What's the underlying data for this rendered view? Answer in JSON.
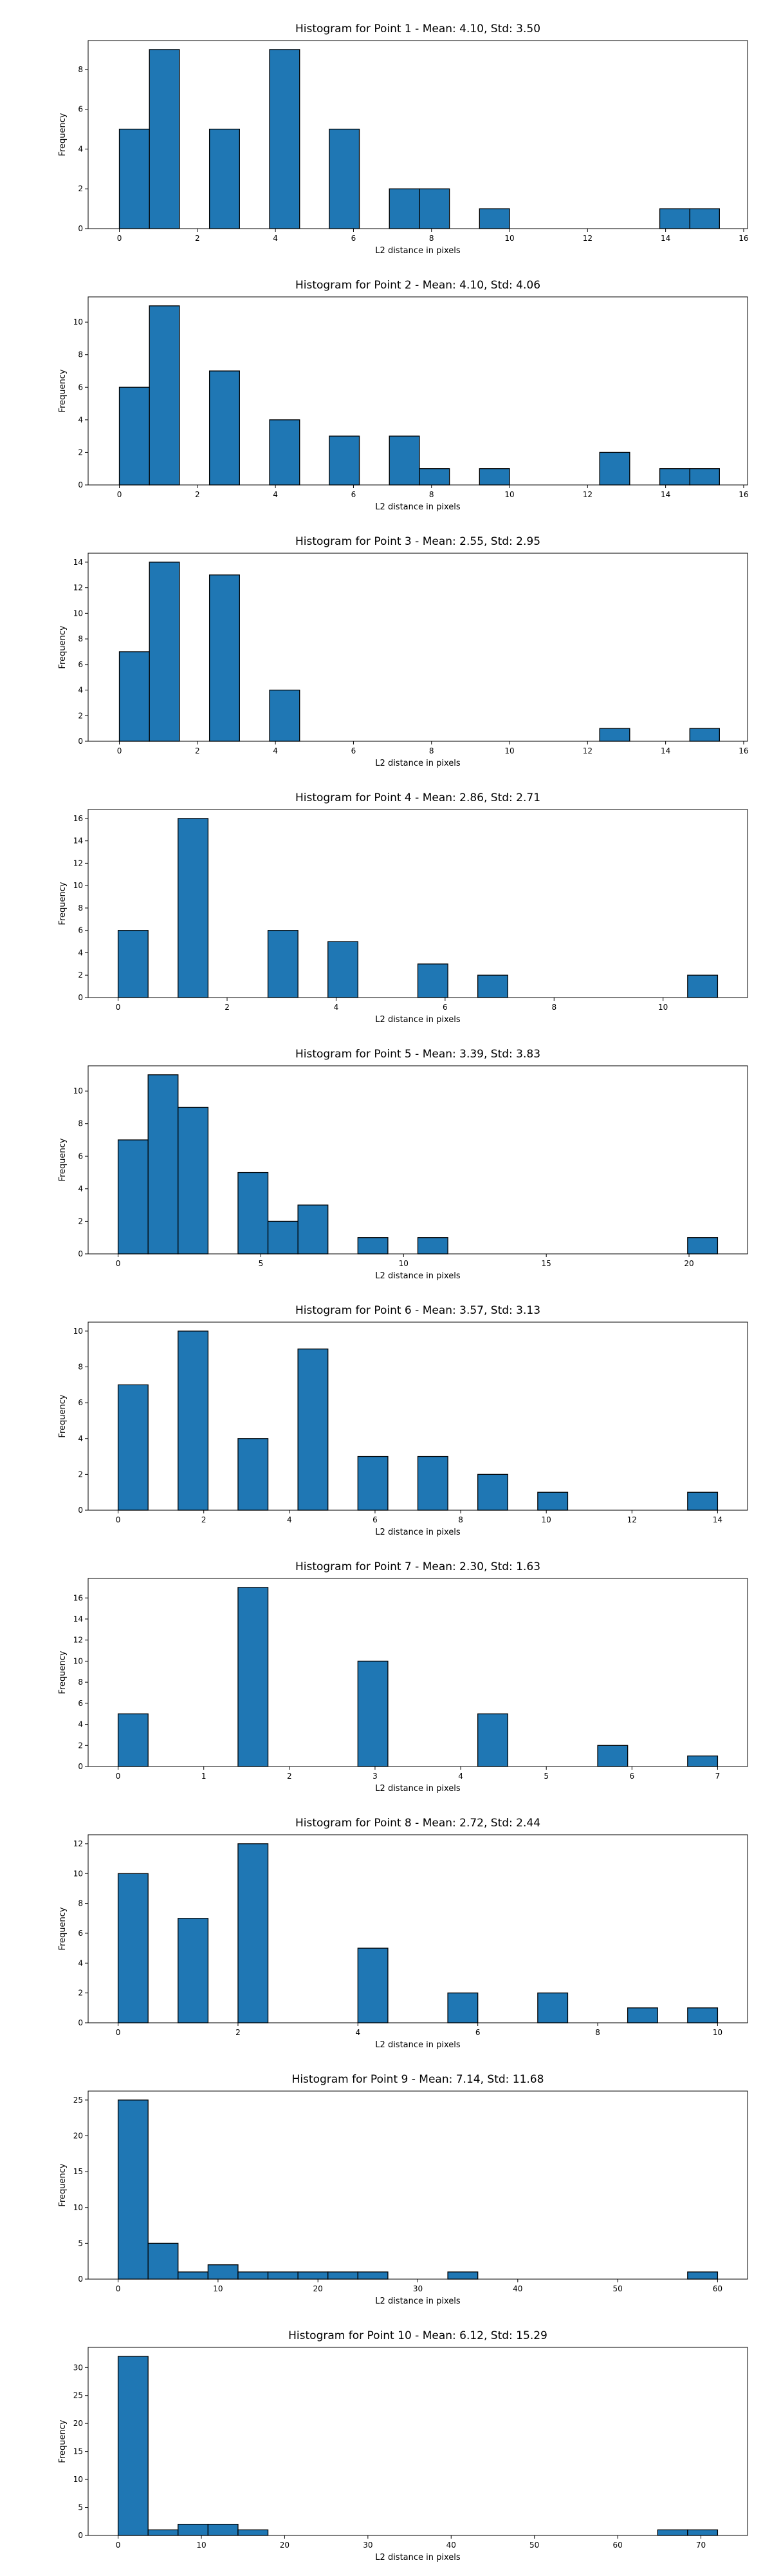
{
  "bar_color": "#1f77b4",
  "edge_color": "#000000",
  "chart_data": [
    {
      "type": "bar",
      "title": "Histogram for Point 1 - Mean: 4.10, Std: 3.50",
      "xlabel": "L2 distance in pixels",
      "ylabel": "Frequency",
      "xlim": [
        -0.8,
        16.1
      ],
      "ylim": [
        0,
        9.45
      ],
      "xticks": [
        0,
        2,
        4,
        6,
        8,
        10,
        12,
        14,
        16
      ],
      "yticks": [
        0,
        2,
        4,
        6,
        8
      ],
      "bins": [
        {
          "x0": 0.0,
          "x1": 0.77,
          "count": 5
        },
        {
          "x0": 0.77,
          "x1": 1.54,
          "count": 9
        },
        {
          "x0": 2.31,
          "x1": 3.08,
          "count": 5
        },
        {
          "x0": 3.85,
          "x1": 4.62,
          "count": 9
        },
        {
          "x0": 5.38,
          "x1": 6.15,
          "count": 5
        },
        {
          "x0": 6.92,
          "x1": 7.69,
          "count": 2
        },
        {
          "x0": 7.69,
          "x1": 8.46,
          "count": 2
        },
        {
          "x0": 9.23,
          "x1": 10.0,
          "count": 1
        },
        {
          "x0": 13.85,
          "x1": 14.62,
          "count": 1
        },
        {
          "x0": 14.62,
          "x1": 15.38,
          "count": 1
        }
      ]
    },
    {
      "type": "bar",
      "title": "Histogram for Point 2 - Mean: 4.10, Std: 4.06",
      "xlabel": "L2 distance in pixels",
      "ylabel": "Frequency",
      "xlim": [
        -0.8,
        16.1
      ],
      "ylim": [
        0,
        11.55
      ],
      "xticks": [
        0,
        2,
        4,
        6,
        8,
        10,
        12,
        14,
        16
      ],
      "yticks": [
        0,
        2,
        4,
        6,
        8,
        10
      ],
      "bins": [
        {
          "x0": 0.0,
          "x1": 0.77,
          "count": 6
        },
        {
          "x0": 0.77,
          "x1": 1.54,
          "count": 11
        },
        {
          "x0": 2.31,
          "x1": 3.08,
          "count": 7
        },
        {
          "x0": 3.85,
          "x1": 4.62,
          "count": 4
        },
        {
          "x0": 5.38,
          "x1": 6.15,
          "count": 3
        },
        {
          "x0": 6.92,
          "x1": 7.69,
          "count": 3
        },
        {
          "x0": 7.69,
          "x1": 8.46,
          "count": 1
        },
        {
          "x0": 9.23,
          "x1": 10.0,
          "count": 1
        },
        {
          "x0": 12.31,
          "x1": 13.08,
          "count": 2
        },
        {
          "x0": 13.85,
          "x1": 14.62,
          "count": 1
        },
        {
          "x0": 14.62,
          "x1": 15.38,
          "count": 1
        }
      ]
    },
    {
      "type": "bar",
      "title": "Histogram for Point 3 - Mean: 2.55, Std: 2.95",
      "xlabel": "L2 distance in pixels",
      "ylabel": "Frequency",
      "xlim": [
        -0.8,
        16.1
      ],
      "ylim": [
        0,
        14.7
      ],
      "xticks": [
        0,
        2,
        4,
        6,
        8,
        10,
        12,
        14,
        16
      ],
      "yticks": [
        0,
        2,
        4,
        6,
        8,
        10,
        12,
        14
      ],
      "bins": [
        {
          "x0": 0.0,
          "x1": 0.77,
          "count": 7
        },
        {
          "x0": 0.77,
          "x1": 1.54,
          "count": 14
        },
        {
          "x0": 2.31,
          "x1": 3.08,
          "count": 13
        },
        {
          "x0": 3.85,
          "x1": 4.62,
          "count": 4
        },
        {
          "x0": 12.31,
          "x1": 13.08,
          "count": 1
        },
        {
          "x0": 14.62,
          "x1": 15.38,
          "count": 1
        }
      ]
    },
    {
      "type": "bar",
      "title": "Histogram for Point 4 - Mean: 2.86, Std: 2.71",
      "xlabel": "L2 distance in pixels",
      "ylabel": "Frequency",
      "xlim": [
        -0.55,
        11.55
      ],
      "ylim": [
        0,
        16.8
      ],
      "xticks": [
        0,
        2,
        4,
        6,
        8,
        10
      ],
      "yticks": [
        0,
        2,
        4,
        6,
        8,
        10,
        12,
        14,
        16
      ],
      "bins": [
        {
          "x0": 0.0,
          "x1": 0.55,
          "count": 6
        },
        {
          "x0": 1.1,
          "x1": 1.65,
          "count": 16
        },
        {
          "x0": 2.75,
          "x1": 3.3,
          "count": 6
        },
        {
          "x0": 3.85,
          "x1": 4.4,
          "count": 5
        },
        {
          "x0": 5.5,
          "x1": 6.05,
          "count": 3
        },
        {
          "x0": 6.6,
          "x1": 7.15,
          "count": 2
        },
        {
          "x0": 10.45,
          "x1": 11.0,
          "count": 2
        }
      ]
    },
    {
      "type": "bar",
      "title": "Histogram for Point 5 - Mean: 3.39, Std: 3.83",
      "xlabel": "L2 distance in pixels",
      "ylabel": "Frequency",
      "xlim": [
        -1.05,
        22.05
      ],
      "ylim": [
        0,
        11.55
      ],
      "xticks": [
        0,
        5,
        10,
        15,
        20
      ],
      "yticks": [
        0,
        2,
        4,
        6,
        8,
        10
      ],
      "bins": [
        {
          "x0": 0.0,
          "x1": 1.05,
          "count": 7
        },
        {
          "x0": 1.05,
          "x1": 2.1,
          "count": 11
        },
        {
          "x0": 2.1,
          "x1": 3.15,
          "count": 9
        },
        {
          "x0": 4.2,
          "x1": 5.25,
          "count": 5
        },
        {
          "x0": 5.25,
          "x1": 6.3,
          "count": 2
        },
        {
          "x0": 6.3,
          "x1": 7.35,
          "count": 3
        },
        {
          "x0": 8.4,
          "x1": 9.45,
          "count": 1
        },
        {
          "x0": 10.5,
          "x1": 11.55,
          "count": 1
        },
        {
          "x0": 19.95,
          "x1": 21.0,
          "count": 1
        }
      ]
    },
    {
      "type": "bar",
      "title": "Histogram for Point 6 - Mean: 3.57, Std: 3.13",
      "xlabel": "L2 distance in pixels",
      "ylabel": "Frequency",
      "xlim": [
        -0.7,
        14.7
      ],
      "ylim": [
        0,
        10.5
      ],
      "xticks": [
        0,
        2,
        4,
        6,
        8,
        10,
        12,
        14
      ],
      "yticks": [
        0,
        2,
        4,
        6,
        8,
        10
      ],
      "bins": [
        {
          "x0": 0.0,
          "x1": 0.7,
          "count": 7
        },
        {
          "x0": 1.4,
          "x1": 2.1,
          "count": 10
        },
        {
          "x0": 2.8,
          "x1": 3.5,
          "count": 4
        },
        {
          "x0": 4.2,
          "x1": 4.9,
          "count": 9
        },
        {
          "x0": 5.6,
          "x1": 6.3,
          "count": 3
        },
        {
          "x0": 7.0,
          "x1": 7.7,
          "count": 3
        },
        {
          "x0": 8.4,
          "x1": 9.1,
          "count": 2
        },
        {
          "x0": 9.8,
          "x1": 10.5,
          "count": 1
        },
        {
          "x0": 13.3,
          "x1": 14.0,
          "count": 1
        }
      ]
    },
    {
      "type": "bar",
      "title": "Histogram for Point 7 - Mean: 2.30, Std: 1.63",
      "xlabel": "L2 distance in pixels",
      "ylabel": "Frequency",
      "xlim": [
        -0.35,
        7.35
      ],
      "ylim": [
        0,
        17.85
      ],
      "xticks": [
        0,
        1,
        2,
        3,
        4,
        5,
        6,
        7
      ],
      "yticks": [
        0,
        2,
        4,
        6,
        8,
        10,
        12,
        14,
        16
      ],
      "bins": [
        {
          "x0": 0.0,
          "x1": 0.35,
          "count": 5
        },
        {
          "x0": 1.4,
          "x1": 1.75,
          "count": 17
        },
        {
          "x0": 2.8,
          "x1": 3.15,
          "count": 10
        },
        {
          "x0": 4.2,
          "x1": 4.55,
          "count": 5
        },
        {
          "x0": 5.6,
          "x1": 5.95,
          "count": 2
        },
        {
          "x0": 6.65,
          "x1": 7.0,
          "count": 1
        }
      ]
    },
    {
      "type": "bar",
      "title": "Histogram for Point 8 - Mean: 2.72, Std: 2.44",
      "xlabel": "L2 distance in pixels",
      "ylabel": "Frequency",
      "xlim": [
        -0.5,
        10.5
      ],
      "ylim": [
        0,
        12.6
      ],
      "xticks": [
        0,
        2,
        4,
        6,
        8,
        10
      ],
      "yticks": [
        0,
        2,
        4,
        6,
        8,
        10,
        12
      ],
      "bins": [
        {
          "x0": 0.0,
          "x1": 0.5,
          "count": 10
        },
        {
          "x0": 1.0,
          "x1": 1.5,
          "count": 7
        },
        {
          "x0": 2.0,
          "x1": 2.5,
          "count": 12
        },
        {
          "x0": 4.0,
          "x1": 4.5,
          "count": 5
        },
        {
          "x0": 5.5,
          "x1": 6.0,
          "count": 2
        },
        {
          "x0": 7.0,
          "x1": 7.5,
          "count": 2
        },
        {
          "x0": 8.5,
          "x1": 9.0,
          "count": 1
        },
        {
          "x0": 9.5,
          "x1": 10.0,
          "count": 1
        }
      ]
    },
    {
      "type": "bar",
      "title": "Histogram for Point 9 - Mean: 7.14, Std: 11.68",
      "xlabel": "L2 distance in pixels",
      "ylabel": "Frequency",
      "xlim": [
        -3.0,
        63.0
      ],
      "ylim": [
        0,
        26.25
      ],
      "xticks": [
        0,
        10,
        20,
        30,
        40,
        50,
        60
      ],
      "yticks": [
        0,
        5,
        10,
        15,
        20,
        25
      ],
      "bins": [
        {
          "x0": 0.0,
          "x1": 3.0,
          "count": 25
        },
        {
          "x0": 3.0,
          "x1": 6.0,
          "count": 5
        },
        {
          "x0": 6.0,
          "x1": 9.0,
          "count": 1
        },
        {
          "x0": 9.0,
          "x1": 12.0,
          "count": 2
        },
        {
          "x0": 12.0,
          "x1": 15.0,
          "count": 1
        },
        {
          "x0": 15.0,
          "x1": 18.0,
          "count": 1
        },
        {
          "x0": 18.0,
          "x1": 21.0,
          "count": 1
        },
        {
          "x0": 21.0,
          "x1": 24.0,
          "count": 1
        },
        {
          "x0": 24.0,
          "x1": 27.0,
          "count": 1
        },
        {
          "x0": 33.0,
          "x1": 36.0,
          "count": 1
        },
        {
          "x0": 57.0,
          "x1": 60.0,
          "count": 1
        }
      ]
    },
    {
      "type": "bar",
      "title": "Histogram for Point 10 - Mean: 6.12, Std: 15.29",
      "xlabel": "L2 distance in pixels",
      "ylabel": "Frequency",
      "xlim": [
        -3.6,
        75.6
      ],
      "ylim": [
        0,
        33.6
      ],
      "xticks": [
        0,
        10,
        20,
        30,
        40,
        50,
        60,
        70
      ],
      "yticks": [
        0,
        5,
        10,
        15,
        20,
        25,
        30
      ],
      "bins": [
        {
          "x0": 0.0,
          "x1": 3.6,
          "count": 32
        },
        {
          "x0": 3.6,
          "x1": 7.2,
          "count": 1
        },
        {
          "x0": 7.2,
          "x1": 10.8,
          "count": 2
        },
        {
          "x0": 10.8,
          "x1": 14.4,
          "count": 2
        },
        {
          "x0": 14.4,
          "x1": 18.0,
          "count": 1
        },
        {
          "x0": 64.8,
          "x1": 68.4,
          "count": 1
        },
        {
          "x0": 68.4,
          "x1": 72.0,
          "count": 1
        }
      ]
    }
  ]
}
